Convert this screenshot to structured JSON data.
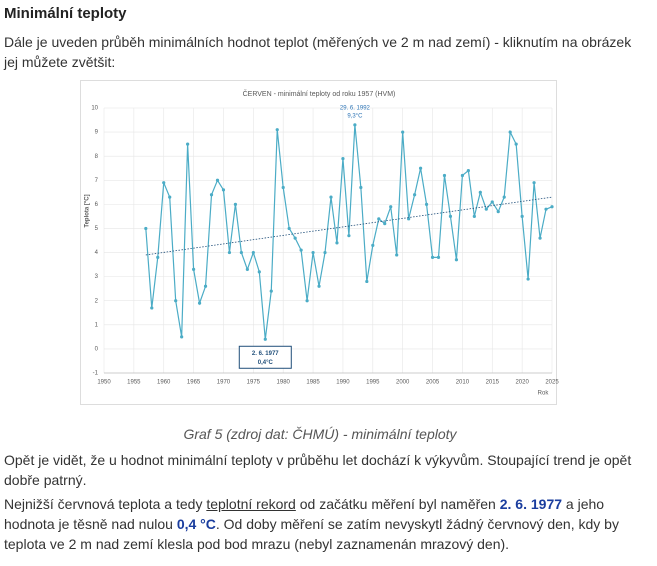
{
  "heading": "Minimální teploty",
  "intro": "Dále je uveden průběh minimálních hodnot teplot (měřených ve 2 m nad zemí) - kliknutím na obrázek jej můžete zvětšit:",
  "chart": {
    "type": "line",
    "title": "ČERVEN - minimální teploty od roku 1957 (HVM)",
    "ylabel": "Teplota [°C]",
    "xlabel": "Rok",
    "x": [
      1957,
      1958,
      1959,
      1960,
      1961,
      1962,
      1963,
      1964,
      1965,
      1966,
      1967,
      1968,
      1969,
      1970,
      1971,
      1972,
      1973,
      1974,
      1975,
      1976,
      1977,
      1978,
      1979,
      1980,
      1981,
      1982,
      1983,
      1984,
      1985,
      1986,
      1987,
      1988,
      1989,
      1990,
      1991,
      1992,
      1993,
      1994,
      1995,
      1996,
      1997,
      1998,
      1999,
      2000,
      2001,
      2002,
      2003,
      2004,
      2005,
      2006,
      2007,
      2008,
      2009,
      2010,
      2011,
      2012,
      2013,
      2014,
      2015,
      2016,
      2017,
      2018,
      2019,
      2020,
      2021,
      2022,
      2023,
      2024,
      2025
    ],
    "series": [
      {
        "name": "Minimální teplota",
        "color": "#4bacc6",
        "values": [
          5.0,
          1.7,
          3.8,
          6.9,
          6.3,
          2.0,
          0.5,
          8.5,
          3.3,
          1.9,
          2.6,
          6.4,
          7.0,
          6.6,
          4.0,
          6.0,
          4.0,
          3.3,
          4.0,
          3.2,
          0.4,
          2.4,
          9.1,
          6.7,
          5.0,
          4.6,
          4.1,
          2.0,
          4.0,
          2.6,
          4.0,
          6.3,
          4.4,
          7.9,
          4.7,
          9.3,
          6.7,
          2.8,
          4.3,
          5.4,
          5.2,
          5.9,
          3.9,
          9.0,
          5.4,
          6.4,
          7.5,
          6.0,
          3.8,
          3.8,
          7.2,
          5.5,
          3.7,
          7.2,
          7.4,
          5.5,
          6.5,
          5.8,
          6.1,
          5.7,
          6.3,
          9.0,
          8.5,
          5.5,
          2.9,
          6.9,
          4.6,
          5.8,
          5.9
        ]
      }
    ],
    "trendline": {
      "color": "#1f4e79",
      "start": 3.9,
      "end": 6.3
    },
    "xlim": [
      1950,
      2025
    ],
    "xticks": [
      1950,
      1955,
      1960,
      1965,
      1970,
      1975,
      1980,
      1985,
      1990,
      1995,
      2000,
      2005,
      2010,
      2015,
      2020,
      2025
    ],
    "ylim": [
      -1,
      10
    ],
    "yticks": [
      -1,
      0,
      1,
      2,
      3,
      4,
      5,
      6,
      7,
      8,
      9,
      10
    ],
    "grid": true,
    "annotations": [
      {
        "date": "29. 6. 1992",
        "value": "9,3°C"
      },
      {
        "date": "2. 6. 1977",
        "value": "0,4°C"
      }
    ]
  },
  "caption": "Graf 5 (zdroj dat: ČHMÚ) - minimální teploty",
  "paragraph1": "Opět je vidět, že u hodnot minimální teploty v průběhu let dochází k výkyvům. Stoupající trend je opět dobře patrný.",
  "paragraph2": {
    "before": "Nejnižší červnová teplota a tedy ",
    "link": "teplotní rekord",
    "middle": " od začátku měření byl naměřen ",
    "date": "2. 6. 1977",
    "middle2": " a jeho hodnota je těsně nad nulou ",
    "value": "0,4 °C",
    "after": ". Od doby měření se zatím nevyskytl žádný červnový den, kdy by teplota ve 2 m nad zemí klesla pod bod mrazu (nebyl zaznamenán mrazový den)."
  }
}
